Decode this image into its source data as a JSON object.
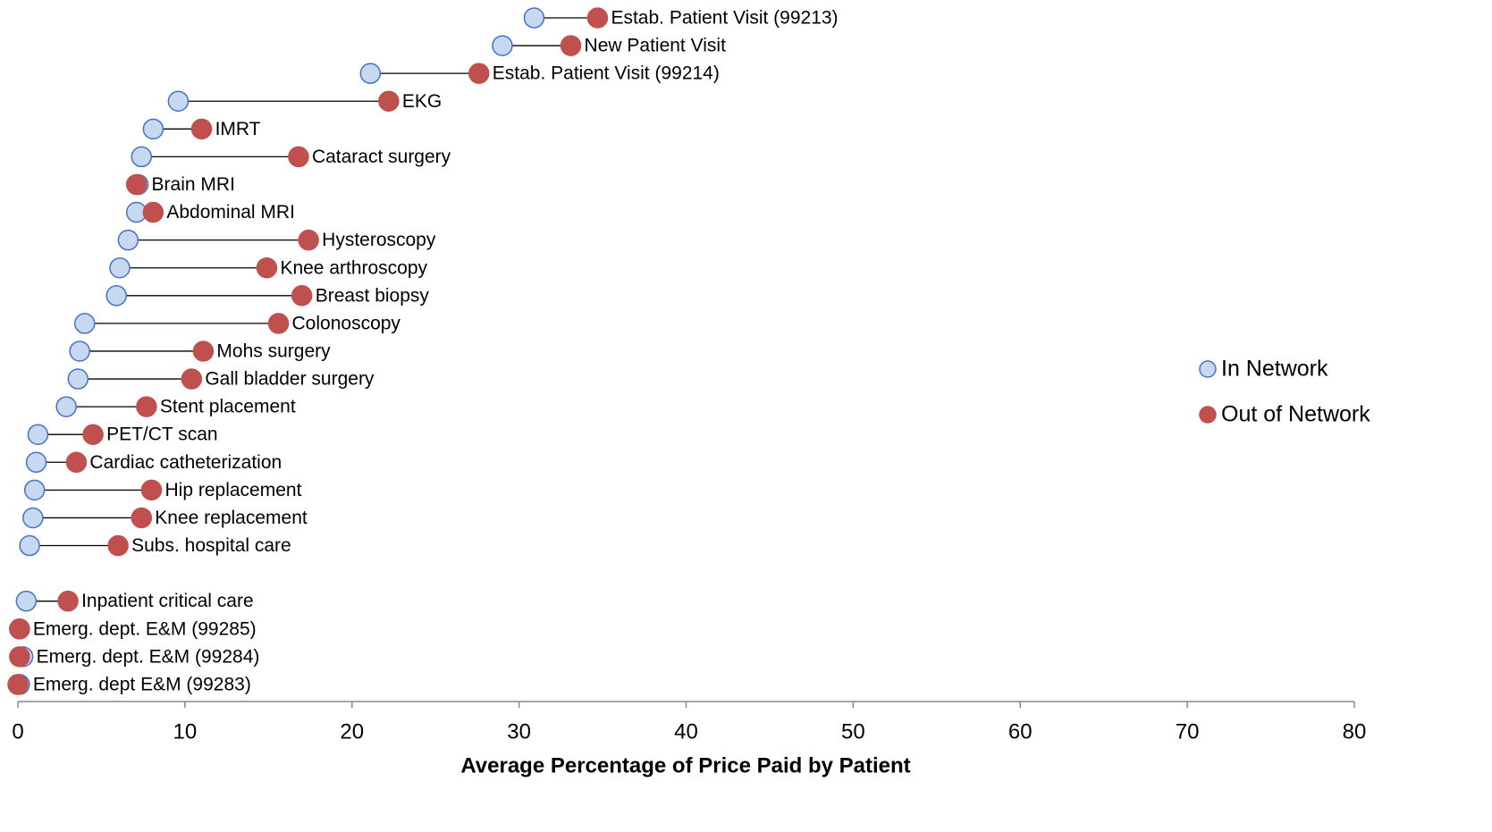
{
  "chart_data": {
    "type": "dumbbell",
    "x_label": "Average Percentage of Price Paid by Patient",
    "categories": [
      "Estab. Patient Visit (99213)",
      "New Patient Visit",
      "Estab. Patient Visit (99214)",
      "EKG",
      "IMRT",
      "Cataract surgery",
      "Brain MRI",
      "Abdominal MRI",
      "Hysteroscopy",
      "Knee arthroscopy",
      "Breast biopsy",
      "Colonoscopy",
      "Mohs  surgery",
      "Gall bladder surgery",
      "Stent placement",
      "PET/CT scan",
      "Cardiac catheterization",
      "Hip replacement",
      "Knee replacement",
      "Subs. hospital care",
      null,
      "Inpatient critical care",
      "Emerg. dept. E&M (99285)",
      "Emerg. dept. E&M (99284)",
      "Emerg. dept E&M (99283)"
    ],
    "series": [
      {
        "name": "In Network",
        "color": "#c6d9f1",
        "stroke": "#4472c4",
        "values": [
          30.9,
          29.0,
          21.1,
          9.6,
          8.1,
          7.4,
          7.2,
          7.1,
          6.6,
          6.1,
          5.9,
          4.0,
          3.7,
          3.6,
          2.9,
          1.2,
          1.1,
          1.0,
          0.9,
          0.7,
          null,
          0.5,
          0.1,
          0.3,
          0.1
        ]
      },
      {
        "name": "Out of Network",
        "color": "#c0504d",
        "stroke": "#c0504d",
        "values": [
          34.7,
          33.1,
          27.6,
          22.2,
          11.0,
          16.8,
          7.1,
          8.1,
          17.4,
          14.9,
          17.0,
          15.6,
          11.1,
          10.4,
          7.7,
          4.5,
          3.5,
          8.0,
          7.4,
          6.0,
          null,
          3.0,
          0.1,
          0.1,
          0.0
        ]
      }
    ],
    "xlim": [
      0,
      80
    ],
    "xticks": [
      0,
      10,
      20,
      30,
      40,
      50,
      60,
      70,
      80
    ],
    "legend": "right"
  }
}
